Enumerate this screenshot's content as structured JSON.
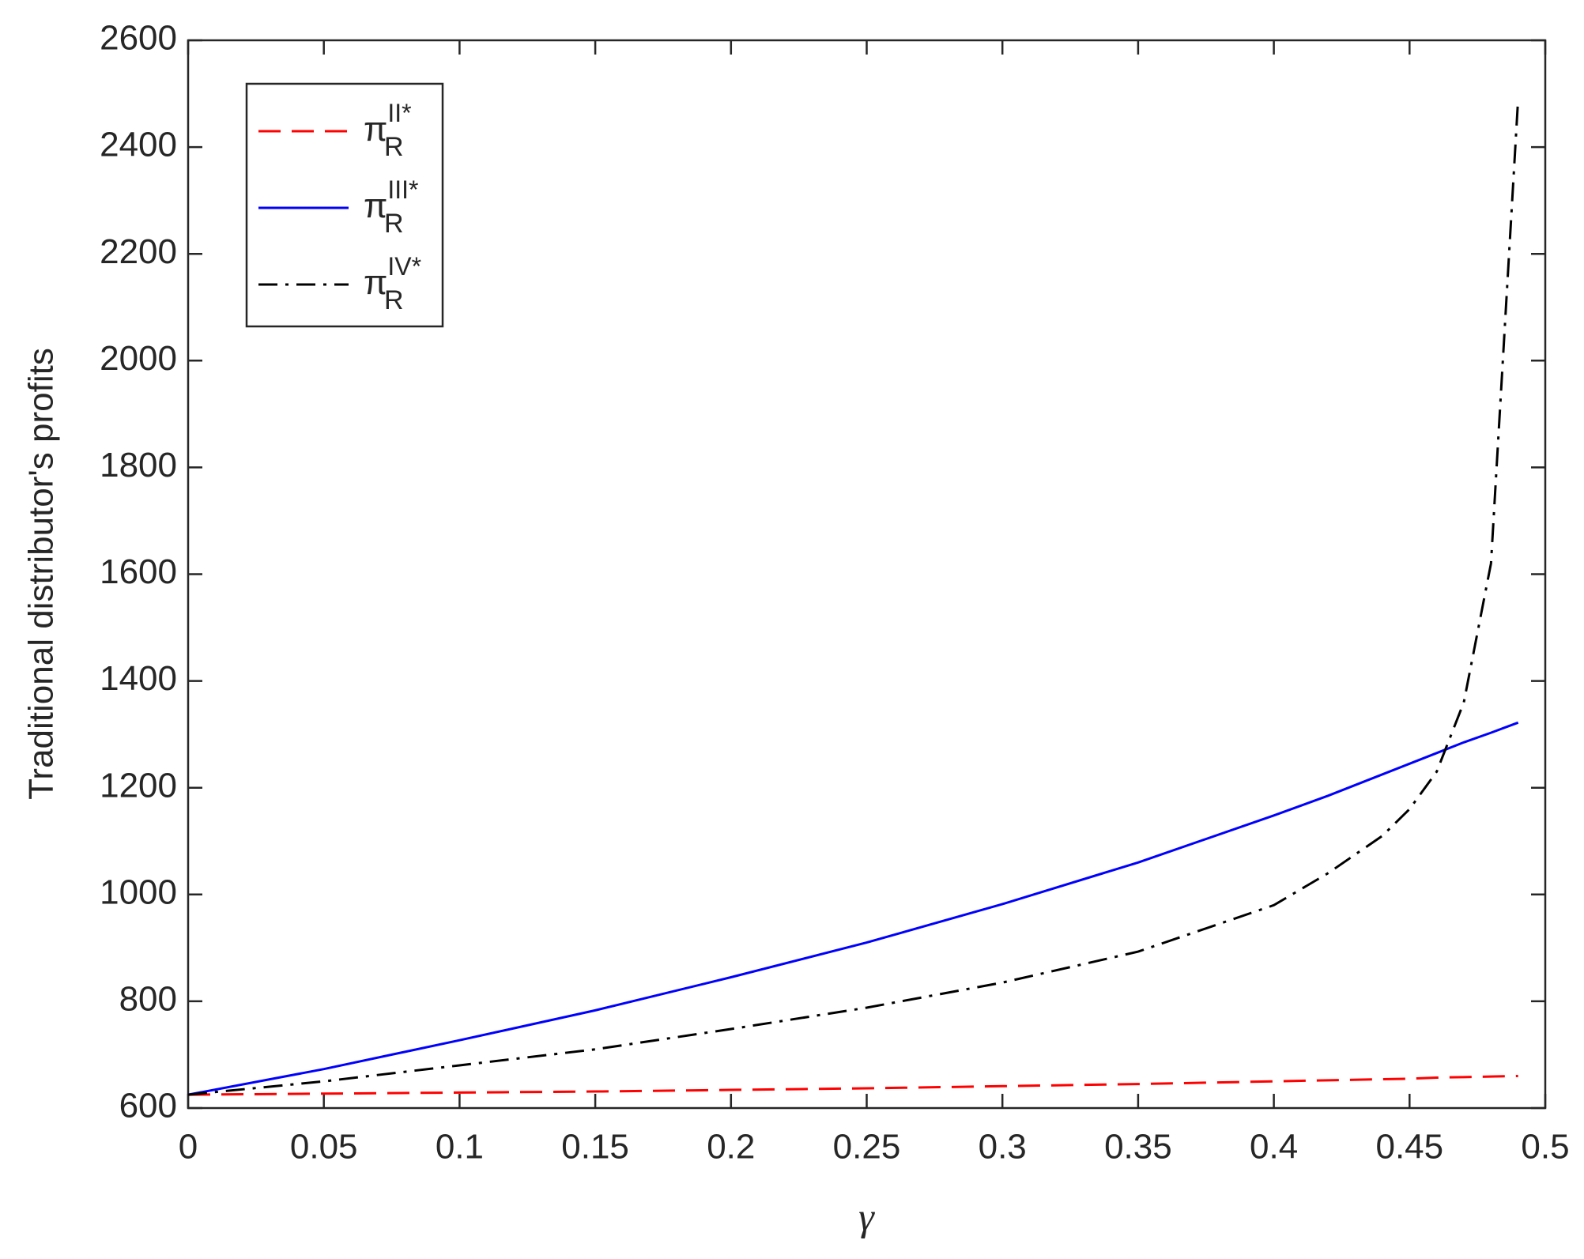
{
  "chart_data": {
    "type": "line",
    "x_label": "γ",
    "y_label": "Traditional distributor's profits",
    "x": [
      0,
      0.05,
      0.1,
      0.15,
      0.2,
      0.25,
      0.3,
      0.35,
      0.4,
      0.42,
      0.44,
      0.45,
      0.46,
      0.47,
      0.48,
      0.49
    ],
    "series": [
      {
        "name": "π_R^II*",
        "color": "#ff0000",
        "style": "dashed",
        "values": [
          625,
          627,
          629,
          631,
          634,
          637,
          641,
          645,
          650,
          652,
          654,
          655,
          657,
          658,
          659,
          660
        ]
      },
      {
        "name": "π_R^III*",
        "color": "#0000ff",
        "style": "solid",
        "values": [
          625,
          673,
          727,
          783,
          845,
          910,
          982,
          1060,
          1148,
          1185,
          1225,
          1245,
          1265,
          1285,
          1303,
          1322
        ]
      },
      {
        "name": "π_R^IV*",
        "color": "#000000",
        "style": "dashdot",
        "values": [
          625,
          650,
          680,
          710,
          748,
          788,
          835,
          893,
          980,
          1040,
          1110,
          1160,
          1230,
          1360,
          1620,
          2490
        ]
      }
    ],
    "xlim": [
      0,
      0.5
    ],
    "xticks": [
      0,
      0.05,
      0.1,
      0.15,
      0.2,
      0.25,
      0.3,
      0.35,
      0.4,
      0.45,
      0.5
    ],
    "ylim": [
      600,
      2600
    ],
    "yticks": [
      600,
      800,
      1000,
      1200,
      1400,
      1600,
      1800,
      2000,
      2200,
      2400,
      2600
    ],
    "legend": "upper left"
  }
}
